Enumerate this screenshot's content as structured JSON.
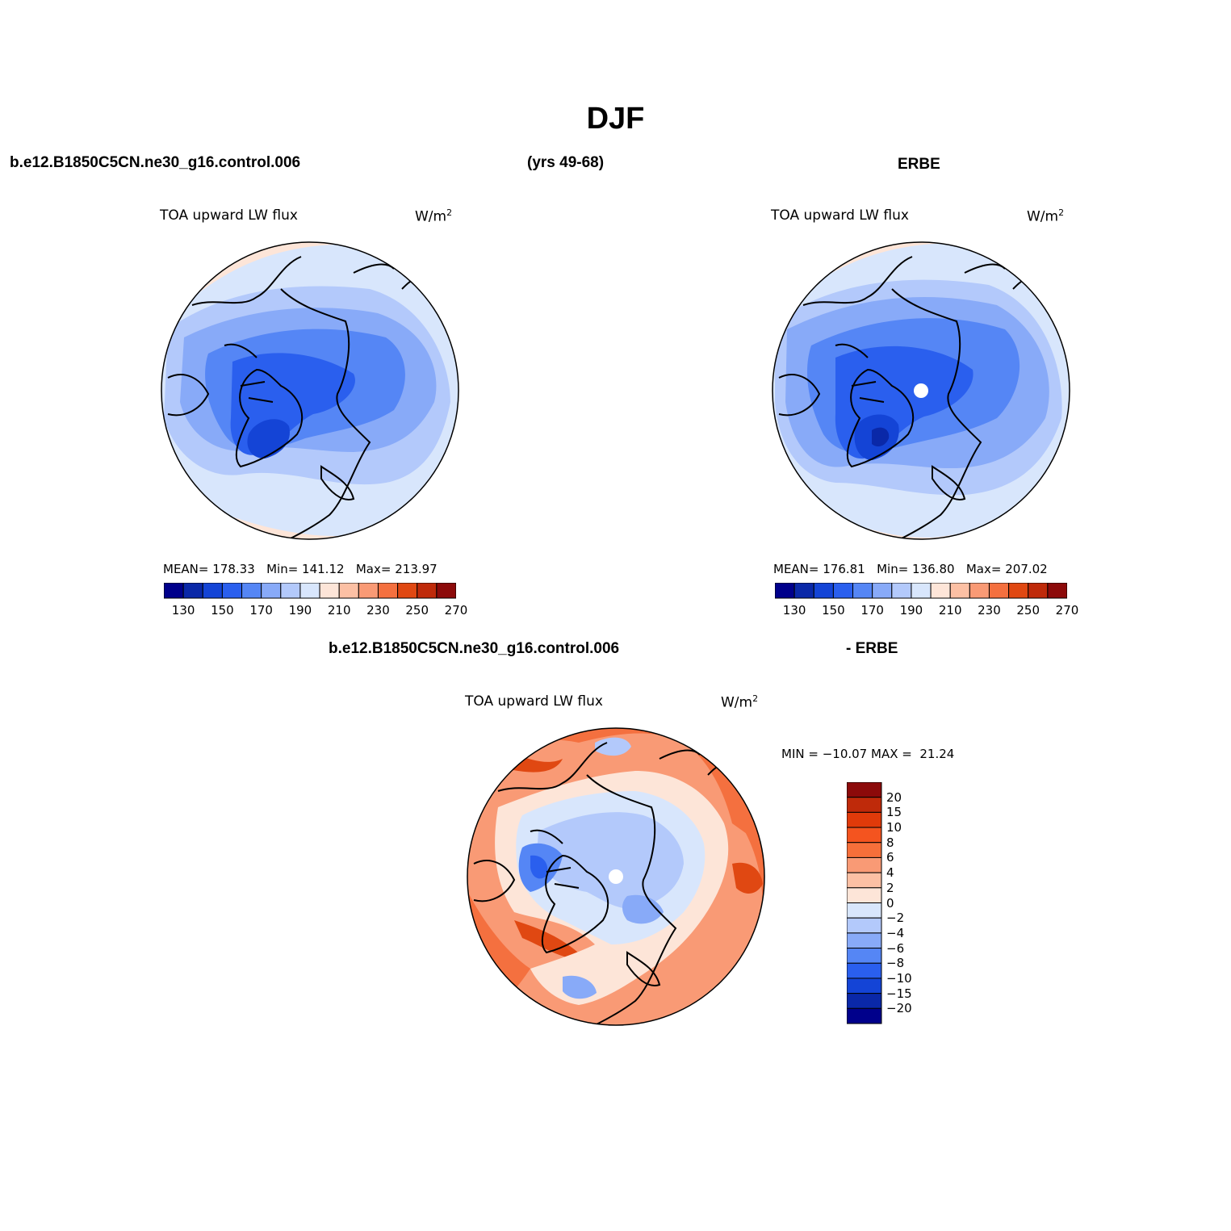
{
  "page": {
    "title": "DJF",
    "case_name": "b.e12.B1850C5CN.ne30_g16.control.006",
    "years": "(yrs 49-68)",
    "obs_name": "ERBE",
    "diff_case_name": "b.e12.B1850C5CN.ne30_g16.control.006",
    "diff_obs_name": "- ERBE"
  },
  "panels": {
    "model": {
      "variable": "TOA upward LW flux",
      "units": "W/m",
      "units_sup": "2",
      "stats": {
        "mean_label": "MEAN=",
        "mean": "178.33",
        "min_label": "Min=",
        "min": "141.12",
        "max_label": "Max=",
        "max": "213.97"
      }
    },
    "obs": {
      "variable": "TOA upward LW flux",
      "units": "W/m",
      "units_sup": "2",
      "stats": {
        "mean_label": "MEAN=",
        "mean": "176.81",
        "min_label": "Min=",
        "min": "136.80",
        "max_label": "Max=",
        "max": "207.02"
      }
    },
    "diff": {
      "variable": "TOA upward LW flux",
      "units": "W/m",
      "units_sup": "2",
      "stats": {
        "min_label": "MIN =",
        "min": "−10.07",
        "max_label": "MAX =",
        "max": "21.24"
      }
    }
  },
  "colorbar_abs": {
    "colors": [
      "#00008b",
      "#0a28a8",
      "#1444d6",
      "#2a5fee",
      "#5586f5",
      "#88aaf8",
      "#b3c9fb",
      "#d8e6fc",
      "#fde5d8",
      "#fcc0a4",
      "#f99a75",
      "#f4703f",
      "#e04812",
      "#bf2a0a",
      "#8c0a0a"
    ],
    "labels": [
      "130",
      "150",
      "170",
      "190",
      "210",
      "230",
      "250",
      "270"
    ]
  },
  "colorbar_diff": {
    "colors": [
      "#8c0a0a",
      "#bf2a0a",
      "#e03a0a",
      "#f4541f",
      "#f66f3a",
      "#f99a75",
      "#fcc0a4",
      "#fde5d8",
      "#d8e6fc",
      "#b3c9fb",
      "#88aaf8",
      "#5586f5",
      "#2a5fee",
      "#1444d6",
      "#0a28a8",
      "#00008b"
    ],
    "labels": [
      "20",
      "15",
      "10",
      "8",
      "6",
      "4",
      "2",
      "0",
      "−2",
      "−4",
      "−6",
      "−8",
      "−10",
      "−15",
      "−20"
    ]
  }
}
